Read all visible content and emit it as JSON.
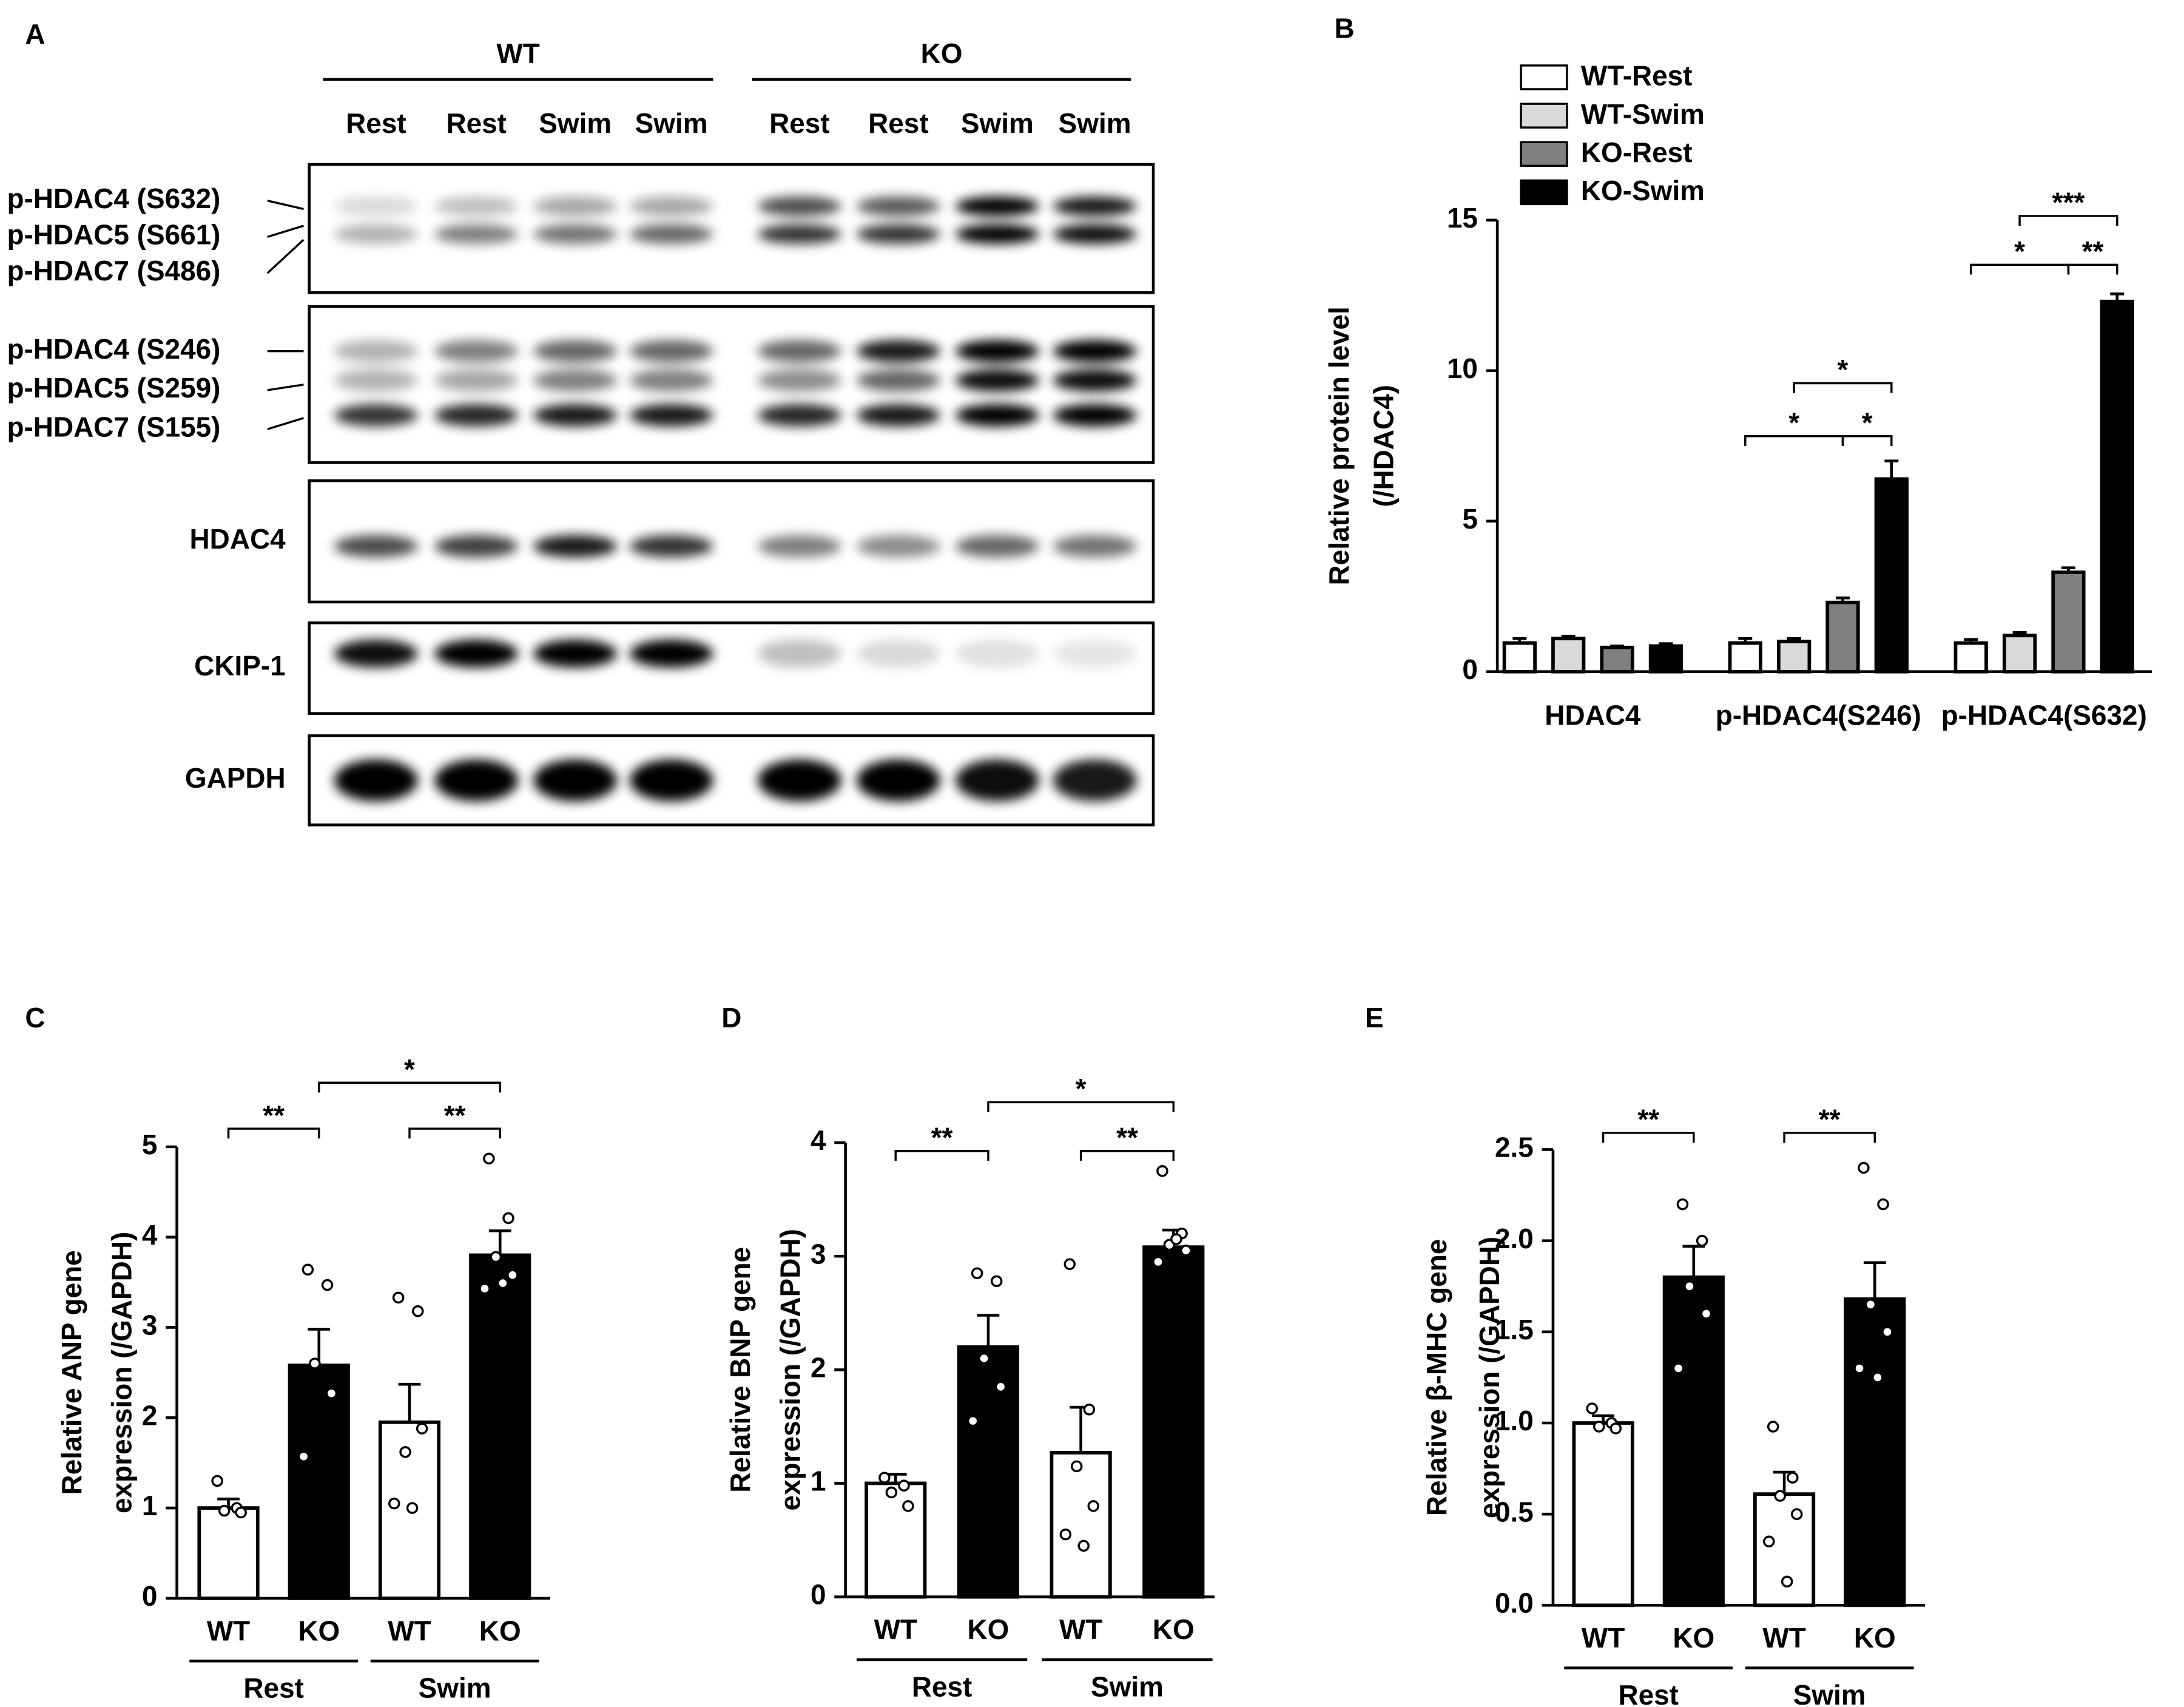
{
  "blot": {
    "panel": "A",
    "groups": [
      "WT",
      "KO"
    ],
    "lanes": [
      "Rest",
      "Rest",
      "Swim",
      "Swim",
      "Rest",
      "Rest",
      "Swim",
      "Swim"
    ],
    "rows": [
      [
        "p-HDAC4 (S632)",
        "p-HDAC5 (S661)",
        "p-HDAC7 (S486)"
      ],
      [
        "p-HDAC4 (S246)",
        "p-HDAC5 (S259)",
        "p-HDAC7 (S155)"
      ],
      [
        "HDAC4"
      ],
      [
        "CKIP-1"
      ],
      [
        "GAPDH"
      ]
    ]
  },
  "chart_data": [
    {
      "panel": "B",
      "type": "bar",
      "ylabel": [
        "Relative protein level",
        "(/HDAC4)"
      ],
      "categories": [
        "HDAC4",
        "p-HDAC4(S246)",
        "p-HDAC4(S632)"
      ],
      "series": [
        {
          "name": "WT-Rest",
          "color": "#ffffff",
          "values": [
            0.95,
            0.95,
            0.95
          ],
          "errors": [
            0.15,
            0.15,
            0.12
          ]
        },
        {
          "name": "WT-Swim",
          "color": "#d9d9d9",
          "values": [
            1.1,
            1.0,
            1.2
          ],
          "errors": [
            0.08,
            0.1,
            0.1
          ]
        },
        {
          "name": "KO-Rest",
          "color": "#808080",
          "values": [
            0.8,
            2.3,
            3.3
          ],
          "errors": [
            0.05,
            0.15,
            0.15
          ]
        },
        {
          "name": "KO-Swim",
          "color": "#000000",
          "values": [
            0.85,
            6.4,
            12.3
          ],
          "errors": [
            0.08,
            0.6,
            0.25
          ]
        }
      ],
      "annotations": [
        "*",
        "*",
        "*",
        "*",
        "**",
        "***"
      ],
      "ylim": [
        0,
        15
      ],
      "yticks": [
        0,
        5,
        10,
        15
      ]
    },
    {
      "panel": "C",
      "type": "bar",
      "ylabel": [
        "Relative ANP gene",
        "expression (/GAPDH)"
      ],
      "categories": [
        "WT",
        "KO",
        "WT",
        "KO"
      ],
      "groups": [
        "Rest",
        "Swim"
      ],
      "colors": [
        "#ffffff",
        "#000000",
        "#ffffff",
        "#000000"
      ],
      "values": [
        1.0,
        2.58,
        1.95,
        3.8
      ],
      "errors": [
        0.1,
        0.4,
        0.42,
        0.27
      ],
      "points": [
        [
          1.3,
          1.0,
          0.97,
          0.95
        ],
        [
          3.64,
          3.47,
          2.6,
          2.27,
          1.57
        ],
        [
          3.33,
          3.18,
          1.62,
          1.88,
          1.05,
          1.0
        ],
        [
          4.87,
          4.21,
          3.78,
          3.58,
          3.43,
          3.49
        ]
      ],
      "annotations": [
        "**",
        "**",
        "*"
      ],
      "ylim": [
        0,
        5
      ],
      "yticks": [
        0,
        1,
        2,
        3,
        4,
        5
      ]
    },
    {
      "panel": "D",
      "type": "bar",
      "ylabel": [
        "Relative BNP gene",
        "expression (/GAPDH)"
      ],
      "categories": [
        "WT",
        "KO",
        "WT",
        "KO"
      ],
      "groups": [
        "Rest",
        "Swim"
      ],
      "colors": [
        "#ffffff",
        "#000000",
        "#ffffff",
        "#000000"
      ],
      "values": [
        1.0,
        2.2,
        1.27,
        3.08
      ],
      "errors": [
        0.08,
        0.28,
        0.4,
        0.15
      ],
      "points": [
        [
          1.05,
          0.98,
          0.92,
          0.8
        ],
        [
          2.85,
          2.78,
          2.1,
          1.85,
          1.55
        ],
        [
          2.93,
          1.65,
          1.15,
          0.8,
          0.55,
          0.45
        ],
        [
          3.75,
          3.2,
          3.1,
          3.05,
          2.95,
          3.15
        ]
      ],
      "annotations": [
        "**",
        "**",
        "*"
      ],
      "ylim": [
        0,
        4
      ],
      "yticks": [
        0,
        1,
        2,
        3,
        4
      ]
    },
    {
      "panel": "E",
      "type": "bar",
      "ylabel": [
        "Relative β-MHC gene",
        "expression (/GAPDH)"
      ],
      "categories": [
        "WT",
        "KO",
        "WT",
        "KO"
      ],
      "groups": [
        "Rest",
        "Swim"
      ],
      "colors": [
        "#ffffff",
        "#000000",
        "#ffffff",
        "#000000"
      ],
      "values": [
        1.0,
        1.8,
        0.61,
        1.68
      ],
      "errors": [
        0.04,
        0.17,
        0.12,
        0.2
      ],
      "points": [
        [
          1.08,
          1.0,
          0.98,
          0.97
        ],
        [
          2.2,
          2.0,
          1.75,
          1.6,
          1.3
        ],
        [
          0.98,
          0.7,
          0.6,
          0.5,
          0.35,
          0.13
        ],
        [
          2.4,
          2.2,
          1.65,
          1.5,
          1.3,
          1.25
        ]
      ],
      "annotations": [
        "**",
        "**"
      ],
      "ylim": [
        0,
        2.5
      ],
      "yticks": [
        {
          "value": 0,
          "label": "0.0"
        },
        0.5,
        {
          "value": 1,
          "label": "1.0"
        },
        1.5,
        {
          "value": 2,
          "label": "2.0"
        },
        2.5
      ]
    }
  ]
}
